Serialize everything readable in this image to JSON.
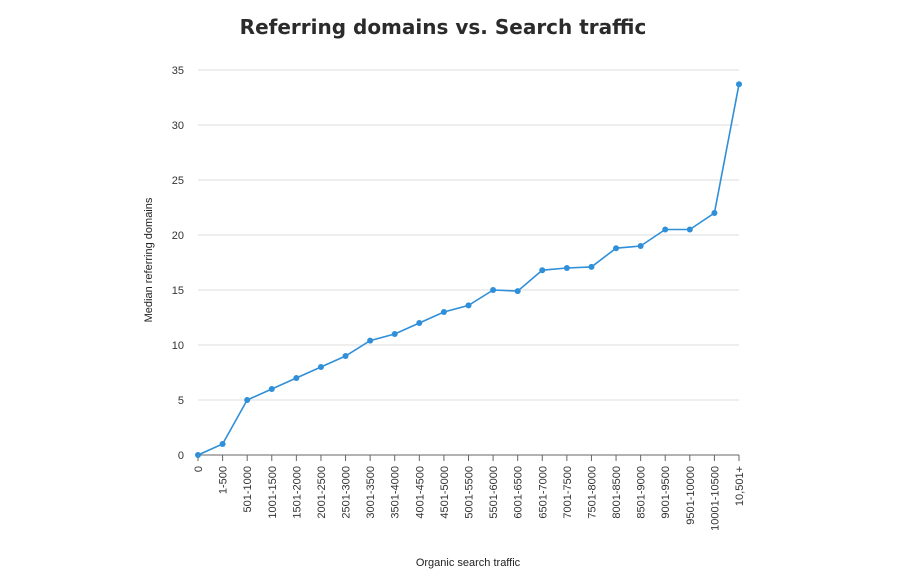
{
  "chart_data": {
    "type": "line",
    "title": "Referring domains vs. Search traffic",
    "xlabel": "Organic search traffic",
    "ylabel": "Median referring domains",
    "ylim": [
      0,
      35
    ],
    "yticks": [
      0,
      5,
      10,
      15,
      20,
      25,
      30,
      35
    ],
    "grid": true,
    "line_color": "#2f8fd8",
    "categories": [
      "0",
      "1-500",
      "501-1000",
      "1001-1500",
      "1501-2000",
      "2001-2500",
      "2501-3000",
      "3001-3500",
      "3501-4000",
      "4001-4500",
      "4501-5000",
      "5001-5500",
      "5501-6000",
      "6001-6500",
      "6501-7000",
      "7001-7500",
      "7501-8000",
      "8001-8500",
      "8501-9000",
      "9001-9500",
      "9501-10000",
      "10001-10500",
      "10,501+"
    ],
    "values": [
      0,
      1,
      5,
      6,
      7,
      8,
      9,
      10.4,
      11,
      12,
      13,
      13.6,
      15,
      14.9,
      16.8,
      17,
      17.1,
      18.8,
      19,
      20.5,
      20.5,
      22,
      33.7
    ]
  }
}
